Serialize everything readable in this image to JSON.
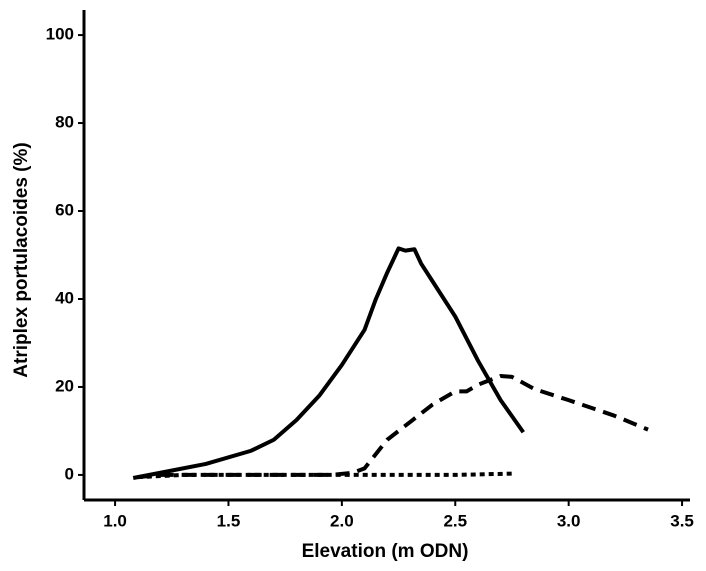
{
  "chart_data": {
    "type": "line",
    "xlabel": "Elevation (m ODN)",
    "ylabel": "Atriplex portulacoides (%)",
    "xlim": [
      0.863,
      3.535
    ],
    "ylim": [
      -5.7,
      105.7
    ],
    "xticks": [
      {
        "value": 1,
        "label": "1.0"
      },
      {
        "value": 1.5,
        "label": "1.5"
      },
      {
        "value": 2,
        "label": "2.0"
      },
      {
        "value": 2.5,
        "label": "2.5"
      },
      {
        "value": 3,
        "label": "3.0"
      },
      {
        "value": 3.5,
        "label": "3.5"
      }
    ],
    "yticks": [
      0,
      20,
      40,
      60,
      80,
      100
    ],
    "series": [
      {
        "color": "#000000",
        "dash": "solid",
        "x": [
          1.08,
          1.2,
          1.4,
          1.6,
          1.7,
          1.8,
          1.9,
          2.0,
          2.1,
          2.15,
          2.2,
          2.25,
          2.28,
          2.32,
          2.35,
          2.4,
          2.5,
          2.6,
          2.7,
          2.8
        ],
        "values": [
          -0.7,
          0.5,
          2.5,
          5.5,
          8,
          12.5,
          18,
          25,
          33,
          40,
          46,
          51.5,
          51,
          51.3,
          48,
          44,
          36,
          26,
          17,
          9.7
        ]
      },
      {
        "color": "#000000",
        "dash": "dashed",
        "x": [
          1.1,
          1.2,
          1.5,
          1.95,
          2.05,
          2.1,
          2.2,
          2.3,
          2.4,
          2.5,
          2.55,
          2.6,
          2.7,
          2.75,
          2.85,
          3.0,
          3.2,
          3.35
        ],
        "values": [
          -0.5,
          0,
          0,
          0,
          0.5,
          1.5,
          8,
          12,
          16,
          19,
          19,
          20.5,
          22.5,
          22.3,
          19.5,
          17,
          13.5,
          10.3
        ]
      },
      {
        "color": "#000000",
        "dash": "dotted",
        "x": [
          1.1,
          1.3,
          2.0,
          2.5,
          2.75
        ],
        "values": [
          -0.5,
          0,
          0,
          0,
          0.3
        ]
      }
    ]
  }
}
